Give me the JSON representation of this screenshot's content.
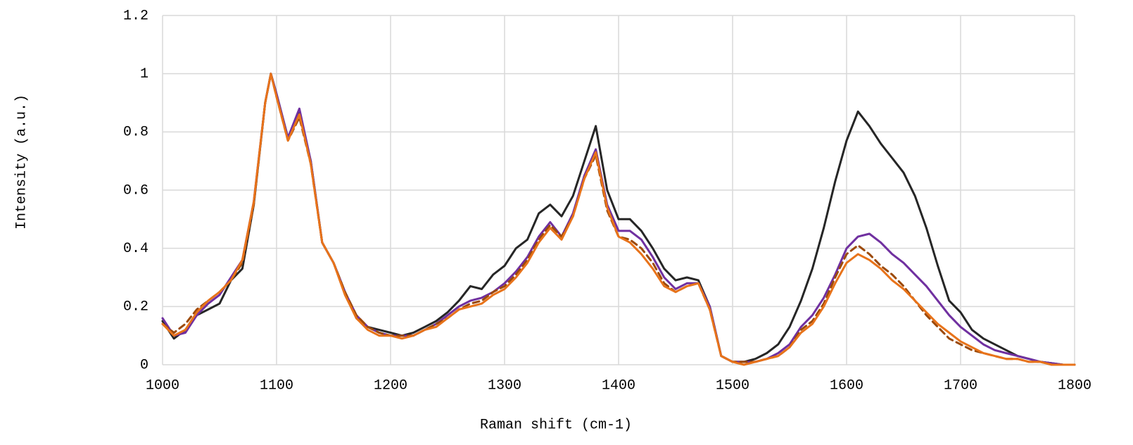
{
  "chart_data": {
    "type": "line",
    "xlabel": "Raman shift (cm-1)",
    "ylabel": "Intensity (a.u.)",
    "x": [
      1000,
      1010,
      1020,
      1030,
      1040,
      1050,
      1060,
      1070,
      1080,
      1090,
      1095,
      1100,
      1110,
      1120,
      1130,
      1140,
      1150,
      1160,
      1170,
      1180,
      1190,
      1200,
      1210,
      1220,
      1230,
      1240,
      1250,
      1260,
      1270,
      1280,
      1290,
      1300,
      1310,
      1320,
      1330,
      1340,
      1350,
      1360,
      1370,
      1380,
      1390,
      1400,
      1410,
      1420,
      1430,
      1440,
      1450,
      1460,
      1470,
      1480,
      1490,
      1500,
      1510,
      1520,
      1530,
      1540,
      1550,
      1560,
      1570,
      1580,
      1590,
      1600,
      1610,
      1620,
      1630,
      1640,
      1650,
      1660,
      1670,
      1680,
      1690,
      1700,
      1710,
      1720,
      1730,
      1740,
      1750,
      1760,
      1770,
      1780,
      1790,
      1800
    ],
    "series": [
      {
        "color": "#262626",
        "dash": false,
        "values": [
          0.15,
          0.09,
          0.12,
          0.17,
          0.19,
          0.21,
          0.29,
          0.33,
          0.55,
          0.9,
          1.0,
          0.93,
          0.78,
          0.87,
          0.7,
          0.42,
          0.35,
          0.25,
          0.16,
          0.13,
          0.12,
          0.11,
          0.1,
          0.11,
          0.13,
          0.15,
          0.18,
          0.22,
          0.27,
          0.26,
          0.31,
          0.34,
          0.4,
          0.43,
          0.52,
          0.55,
          0.51,
          0.58,
          0.7,
          0.82,
          0.6,
          0.5,
          0.5,
          0.46,
          0.4,
          0.33,
          0.29,
          0.3,
          0.29,
          0.2,
          0.03,
          0.01,
          0.01,
          0.02,
          0.04,
          0.07,
          0.13,
          0.22,
          0.33,
          0.47,
          0.63,
          0.77,
          0.87,
          0.82,
          0.76,
          0.71,
          0.66,
          0.58,
          0.47,
          0.34,
          0.22,
          0.18,
          0.12,
          0.09,
          0.07,
          0.05,
          0.03,
          0.02,
          0.01,
          0.005,
          0,
          0
        ]
      },
      {
        "color": "#7030a0",
        "dash": false,
        "values": [
          0.16,
          0.1,
          0.11,
          0.17,
          0.21,
          0.24,
          0.3,
          0.36,
          0.56,
          0.9,
          1.0,
          0.93,
          0.78,
          0.88,
          0.7,
          0.42,
          0.35,
          0.25,
          0.17,
          0.13,
          0.11,
          0.1,
          0.1,
          0.1,
          0.12,
          0.14,
          0.17,
          0.2,
          0.22,
          0.23,
          0.25,
          0.28,
          0.32,
          0.37,
          0.44,
          0.49,
          0.44,
          0.52,
          0.65,
          0.74,
          0.55,
          0.46,
          0.46,
          0.43,
          0.37,
          0.3,
          0.26,
          0.28,
          0.28,
          0.2,
          0.03,
          0.01,
          0.01,
          0.01,
          0.02,
          0.04,
          0.07,
          0.13,
          0.17,
          0.23,
          0.31,
          0.4,
          0.44,
          0.45,
          0.42,
          0.38,
          0.35,
          0.31,
          0.27,
          0.22,
          0.17,
          0.13,
          0.1,
          0.07,
          0.05,
          0.04,
          0.03,
          0.02,
          0.01,
          0.005,
          0,
          0
        ]
      },
      {
        "color": "#9c4a0a",
        "dash": true,
        "values": [
          0.14,
          0.11,
          0.14,
          0.19,
          0.22,
          0.25,
          0.29,
          0.35,
          0.55,
          0.9,
          1.0,
          0.92,
          0.77,
          0.85,
          0.69,
          0.42,
          0.35,
          0.25,
          0.17,
          0.13,
          0.11,
          0.1,
          0.1,
          0.1,
          0.12,
          0.14,
          0.16,
          0.19,
          0.21,
          0.22,
          0.25,
          0.27,
          0.31,
          0.36,
          0.43,
          0.48,
          0.44,
          0.51,
          0.64,
          0.72,
          0.53,
          0.44,
          0.43,
          0.4,
          0.35,
          0.28,
          0.25,
          0.27,
          0.28,
          0.19,
          0.03,
          0.01,
          0.01,
          0.01,
          0.02,
          0.03,
          0.06,
          0.12,
          0.15,
          0.21,
          0.3,
          0.38,
          0.41,
          0.38,
          0.34,
          0.31,
          0.27,
          0.22,
          0.17,
          0.13,
          0.09,
          0.07,
          0.05,
          0.04,
          0.03,
          0.02,
          0.02,
          0.01,
          0.01,
          0,
          0,
          0
        ]
      },
      {
        "color": "#e8731a",
        "dash": false,
        "values": [
          0.14,
          0.1,
          0.12,
          0.18,
          0.22,
          0.25,
          0.29,
          0.36,
          0.56,
          0.9,
          1.0,
          0.92,
          0.77,
          0.86,
          0.69,
          0.42,
          0.35,
          0.24,
          0.16,
          0.12,
          0.1,
          0.1,
          0.09,
          0.1,
          0.12,
          0.13,
          0.16,
          0.19,
          0.2,
          0.21,
          0.24,
          0.26,
          0.3,
          0.35,
          0.42,
          0.47,
          0.43,
          0.51,
          0.64,
          0.73,
          0.54,
          0.44,
          0.42,
          0.38,
          0.33,
          0.27,
          0.25,
          0.27,
          0.28,
          0.19,
          0.03,
          0.01,
          0,
          0.01,
          0.02,
          0.03,
          0.06,
          0.11,
          0.14,
          0.2,
          0.28,
          0.35,
          0.38,
          0.36,
          0.33,
          0.29,
          0.26,
          0.22,
          0.18,
          0.14,
          0.11,
          0.08,
          0.06,
          0.04,
          0.03,
          0.02,
          0.02,
          0.01,
          0.01,
          0,
          0,
          0
        ]
      }
    ],
    "xlim": [
      1000,
      1800
    ],
    "xticks": [
      1000,
      1100,
      1200,
      1300,
      1400,
      1500,
      1600,
      1700,
      1800
    ],
    "ylim": [
      0,
      1.2
    ],
    "yticks": [
      0,
      0.2,
      0.4,
      0.6,
      0.8,
      1,
      1.2
    ],
    "grid": true
  }
}
